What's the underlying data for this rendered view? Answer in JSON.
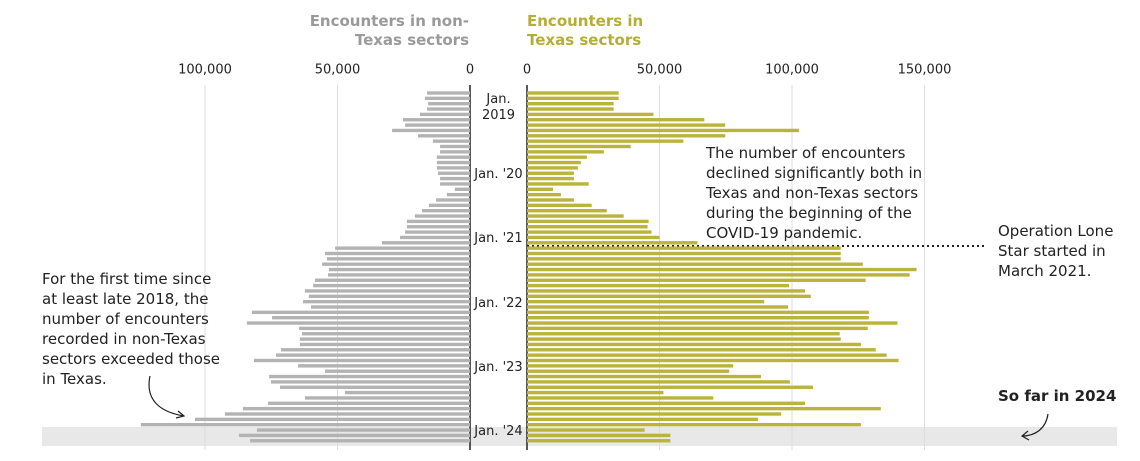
{
  "chart_data": {
    "type": "bar",
    "orientation": "horizontal",
    "categories": [
      null,
      null,
      null,
      "Jan. 2019",
      null,
      null,
      null,
      null,
      null,
      null,
      null,
      null,
      null,
      null,
      null,
      "Jan. '20",
      null,
      null,
      null,
      null,
      null,
      null,
      null,
      null,
      null,
      null,
      null,
      "Jan. '21",
      null,
      null,
      null,
      null,
      null,
      null,
      null,
      null,
      null,
      null,
      null,
      "Jan. '22",
      null,
      null,
      null,
      null,
      null,
      null,
      null,
      null,
      null,
      null,
      null,
      "Jan. '23",
      null,
      null,
      null,
      null,
      null,
      null,
      null,
      null,
      null,
      null,
      null,
      "Jan. '24",
      null,
      null
    ],
    "series": [
      {
        "name": "Encounters in non-Texas sectors",
        "color": "#b3b3b3",
        "axis": "x",
        "values": [
          16200,
          17000,
          15800,
          16200,
          18900,
          25300,
          24500,
          29400,
          19600,
          14000,
          11300,
          11300,
          12500,
          12500,
          12500,
          12100,
          11300,
          11300,
          5700,
          8700,
          12800,
          15500,
          18100,
          20800,
          23800,
          23800,
          24500,
          26400,
          33200,
          50900,
          54700,
          54000,
          55800,
          53200,
          53600,
          58500,
          59200,
          62300,
          60800,
          63000,
          60000,
          82300,
          74700,
          84200,
          64500,
          63400,
          64200,
          64200,
          71300,
          73200,
          81500,
          64900,
          54700,
          75800,
          75100,
          71700,
          47200,
          62300,
          76200,
          85700,
          92500,
          103800,
          124200,
          80400,
          87200,
          83000
        ]
      },
      {
        "name": "Encounters in Texas sectors",
        "color": "#bab43c",
        "axis": "x2",
        "values": [
          34600,
          34600,
          32700,
          32700,
          47700,
          66900,
          74800,
          102600,
          74800,
          59000,
          39100,
          29000,
          22600,
          20300,
          19200,
          17700,
          17700,
          23300,
          9800,
          12800,
          17700,
          24400,
          30100,
          36500,
          45900,
          45500,
          47000,
          50000,
          64300,
          118400,
          118400,
          118400,
          126700,
          147000,
          144400,
          127800,
          98900,
          104900,
          107100,
          89500,
          98500,
          129000,
          129000,
          139800,
          128600,
          118000,
          118400,
          126000,
          131600,
          135700,
          140200,
          77800,
          76300,
          88300,
          99200,
          107900,
          51500,
          70300,
          104900,
          133500,
          95900,
          87200,
          126000,
          44400,
          54100,
          54100
        ]
      }
    ],
    "xlim": [
      0,
      160000
    ],
    "xticks": [
      0,
      {
        "value": 50000,
        "label": "50,000"
      },
      {
        "value": 100000,
        "label": "100,000"
      }
    ],
    "x2lim": [
      0,
      160000
    ],
    "x2ticks": [
      0,
      {
        "value": 50000,
        "label": "50,000"
      },
      {
        "value": 100000,
        "label": "100,000"
      },
      {
        "value": 150000,
        "label": "150,000"
      }
    ],
    "grid": true,
    "annotations": [
      "The number of encounters declined significantly both in Texas and non-Texas sectors during the beginning of the COVID-19 pandemic.",
      "Operation Lone Star started in March 2021.",
      "For the first time since at least late 2018, the number of encounters recorded in non-Texas sectors exceeded those in Texas.",
      "So far in 2024"
    ]
  }
}
